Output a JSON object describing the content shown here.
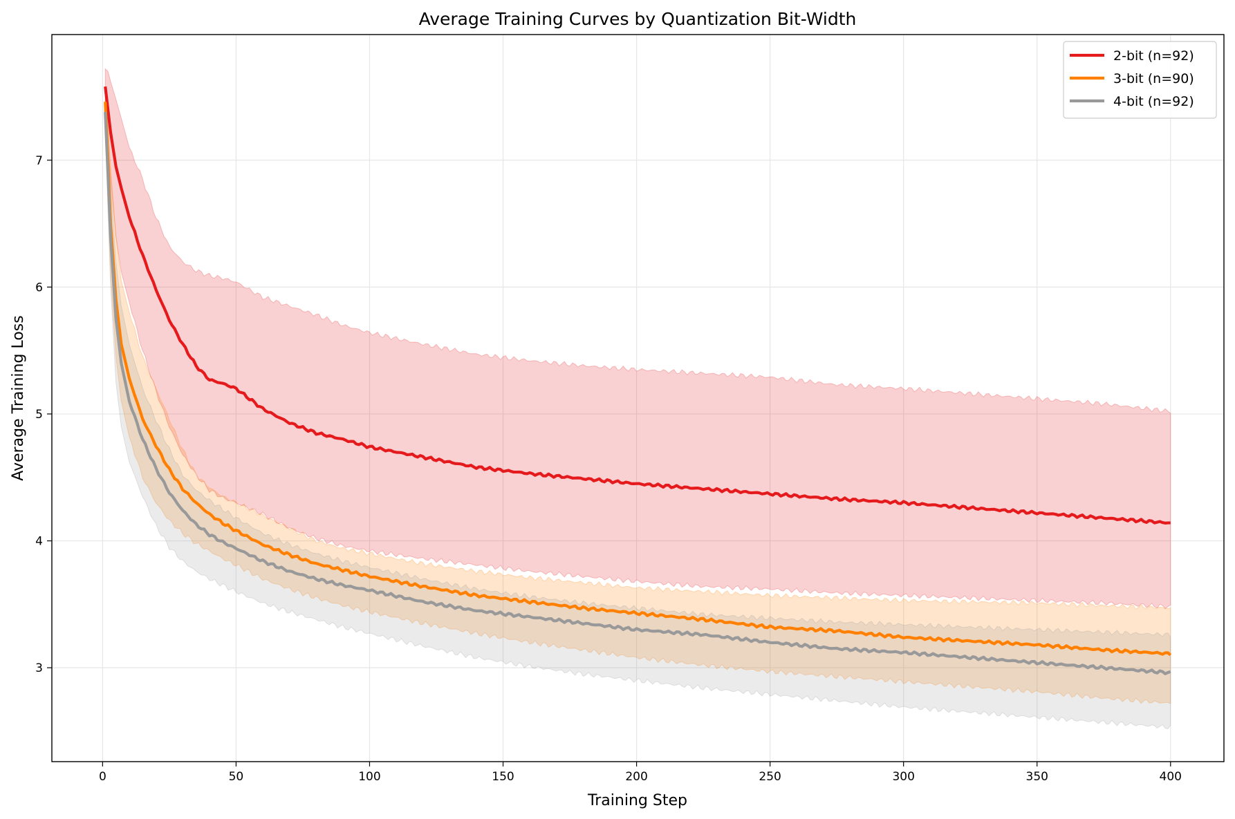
{
  "chart_data": {
    "type": "line",
    "title": "Average Training Curves by Quantization Bit-Width",
    "xlabel": "Training Step",
    "ylabel": "Average Training Loss",
    "xlim": [
      -19,
      420
    ],
    "ylim": [
      2.26,
      7.99
    ],
    "xticks": [
      0,
      50,
      100,
      150,
      200,
      250,
      300,
      350,
      400
    ],
    "yticks": [
      3,
      4,
      5,
      6,
      7
    ],
    "grid": true,
    "legend_position": "upper right",
    "x": [
      1,
      2,
      3,
      5,
      7,
      10,
      15,
      20,
      25,
      30,
      35,
      40,
      45,
      50,
      60,
      70,
      80,
      90,
      100,
      120,
      140,
      160,
      180,
      200,
      225,
      250,
      275,
      300,
      325,
      350,
      375,
      400
    ],
    "series": [
      {
        "name": "2-bit (n=92)",
        "color": "#e41a1c",
        "values": [
          7.58,
          7.4,
          7.22,
          6.95,
          6.78,
          6.55,
          6.25,
          5.98,
          5.74,
          5.55,
          5.38,
          5.27,
          5.24,
          5.2,
          5.04,
          4.93,
          4.85,
          4.8,
          4.74,
          4.66,
          4.58,
          4.53,
          4.49,
          4.45,
          4.41,
          4.37,
          4.33,
          4.3,
          4.26,
          4.22,
          4.18,
          4.14
        ],
        "upper": [
          7.72,
          7.7,
          7.62,
          7.48,
          7.33,
          7.1,
          6.85,
          6.55,
          6.32,
          6.2,
          6.13,
          6.09,
          6.07,
          6.04,
          5.92,
          5.85,
          5.78,
          5.7,
          5.64,
          5.55,
          5.47,
          5.42,
          5.38,
          5.35,
          5.32,
          5.29,
          5.23,
          5.2,
          5.16,
          5.12,
          5.08,
          5.02
        ],
        "lower": [
          7.42,
          7.15,
          6.85,
          6.4,
          6.12,
          5.88,
          5.5,
          5.18,
          4.9,
          4.68,
          4.52,
          4.4,
          4.34,
          4.3,
          4.21,
          4.1,
          4.02,
          3.96,
          3.92,
          3.86,
          3.81,
          3.76,
          3.72,
          3.68,
          3.64,
          3.62,
          3.59,
          3.57,
          3.55,
          3.53,
          3.51,
          3.48
        ]
      },
      {
        "name": "3-bit (n=90)",
        "color": "#ff7f00",
        "values": [
          7.46,
          7.0,
          6.5,
          5.9,
          5.55,
          5.28,
          4.96,
          4.75,
          4.56,
          4.41,
          4.3,
          4.21,
          4.14,
          4.08,
          3.97,
          3.89,
          3.82,
          3.77,
          3.72,
          3.64,
          3.57,
          3.52,
          3.47,
          3.43,
          3.38,
          3.32,
          3.29,
          3.24,
          3.21,
          3.18,
          3.14,
          3.11
        ],
        "upper": [
          7.55,
          7.3,
          6.95,
          6.4,
          6.05,
          5.8,
          5.45,
          5.2,
          4.96,
          4.72,
          4.52,
          4.42,
          4.35,
          4.3,
          4.2,
          4.1,
          4.0,
          3.94,
          3.9,
          3.82,
          3.76,
          3.71,
          3.67,
          3.63,
          3.6,
          3.57,
          3.55,
          3.53,
          3.52,
          3.51,
          3.49,
          3.47
        ],
        "lower": [
          7.35,
          6.7,
          6.1,
          5.45,
          5.1,
          4.82,
          4.5,
          4.3,
          4.16,
          4.06,
          3.98,
          3.92,
          3.86,
          3.81,
          3.7,
          3.62,
          3.55,
          3.49,
          3.44,
          3.35,
          3.27,
          3.2,
          3.14,
          3.08,
          3.02,
          2.97,
          2.93,
          2.89,
          2.85,
          2.81,
          2.76,
          2.72
        ]
      },
      {
        "name": "4-bit (n=92)",
        "color": "#999999",
        "values": [
          7.38,
          6.9,
          6.4,
          5.75,
          5.4,
          5.1,
          4.8,
          4.57,
          4.38,
          4.24,
          4.13,
          4.05,
          3.99,
          3.94,
          3.84,
          3.76,
          3.7,
          3.65,
          3.61,
          3.52,
          3.45,
          3.4,
          3.35,
          3.3,
          3.26,
          3.2,
          3.15,
          3.12,
          3.08,
          3.04,
          3.0,
          2.96
        ],
        "upper": [
          7.48,
          7.15,
          6.8,
          6.2,
          5.85,
          5.55,
          5.2,
          4.95,
          4.72,
          4.52,
          4.4,
          4.32,
          4.25,
          4.18,
          4.06,
          3.97,
          3.9,
          3.84,
          3.79,
          3.7,
          3.62,
          3.56,
          3.51,
          3.47,
          3.42,
          3.39,
          3.36,
          3.34,
          3.32,
          3.3,
          3.28,
          3.26
        ],
        "lower": [
          7.25,
          6.6,
          6.0,
          5.25,
          4.9,
          4.62,
          4.35,
          4.12,
          3.95,
          3.84,
          3.76,
          3.7,
          3.65,
          3.6,
          3.51,
          3.44,
          3.38,
          3.32,
          3.27,
          3.17,
          3.08,
          3.01,
          2.95,
          2.9,
          2.84,
          2.79,
          2.74,
          2.69,
          2.65,
          2.61,
          2.57,
          2.53
        ]
      }
    ]
  }
}
